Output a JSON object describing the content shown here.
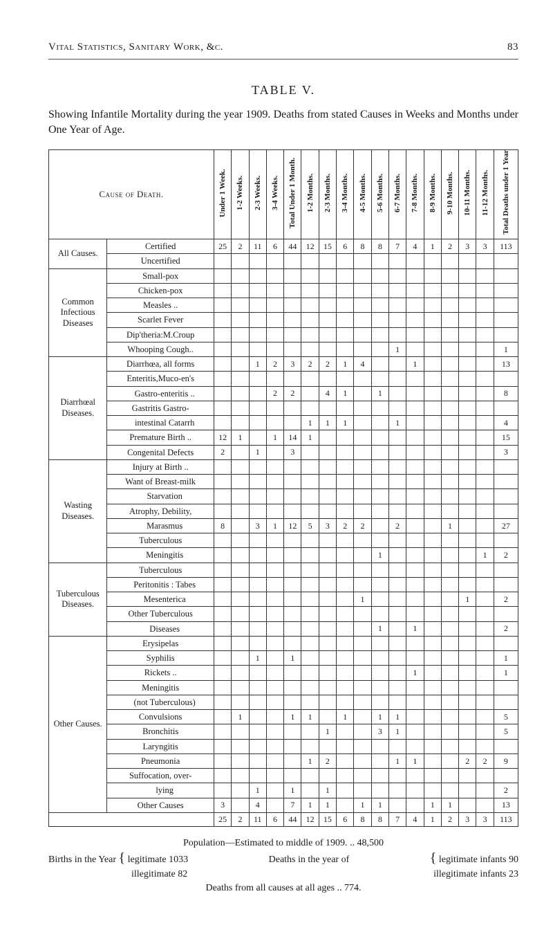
{
  "page_number": "83",
  "running_head": "Vital Statistics, Sanitary Work, &c.",
  "table_title": "TABLE  V.",
  "table_caption": "Showing Infantile Mortality during the year 1909.  Deaths from stated Causes in Weeks and Months under One Year of Age.",
  "col_cause_head": "Cause of Death.",
  "columns": [
    "Under 1 Week.",
    "1-2 Weeks.",
    "2-3 Weeks.",
    "3-4 Weeks.",
    "Total Under 1 Month.",
    "1-2 Months.",
    "2-3 Months.",
    "3-4 Months.",
    "4-5 Months.",
    "5-6 Months.",
    "6-7 Months.",
    "7-8 Months.",
    "8-9 Months.",
    "9-10 Months.",
    "10-11 Months.",
    "11-12 Months.",
    "Total Deaths under 1 Year."
  ],
  "groups": [
    {
      "label": "All Causes.",
      "rows": [
        {
          "cause": "Certified",
          "cells": [
            "25",
            "2",
            "11",
            "6",
            "44",
            "12",
            "15",
            "6",
            "8",
            "8",
            "7",
            "4",
            "1",
            "2",
            "3",
            "3",
            "113"
          ]
        },
        {
          "cause": "Uncertified",
          "cells": [
            "",
            "",
            "",
            "",
            "",
            "",
            "",
            "",
            "",
            "",
            "",
            "",
            "",
            "",
            "",
            "",
            ""
          ]
        }
      ]
    },
    {
      "label": "Common Infectious Diseases",
      "rows": [
        {
          "cause": "Small-pox",
          "cells": [
            "",
            "",
            "",
            "",
            "",
            "",
            "",
            "",
            "",
            "",
            "",
            "",
            "",
            "",
            "",
            "",
            ""
          ]
        },
        {
          "cause": "Chicken-pox",
          "cells": [
            "",
            "",
            "",
            "",
            "",
            "",
            "",
            "",
            "",
            "",
            "",
            "",
            "",
            "",
            "",
            "",
            ""
          ]
        },
        {
          "cause": "Measles ..",
          "cells": [
            "",
            "",
            "",
            "",
            "",
            "",
            "",
            "",
            "",
            "",
            "",
            "",
            "",
            "",
            "",
            "",
            ""
          ]
        },
        {
          "cause": "Scarlet Fever",
          "cells": [
            "",
            "",
            "",
            "",
            "",
            "",
            "",
            "",
            "",
            "",
            "",
            "",
            "",
            "",
            "",
            "",
            ""
          ]
        },
        {
          "cause": "Dip'theria:M.Croup",
          "cells": [
            "",
            "",
            "",
            "",
            "",
            "",
            "",
            "",
            "",
            "",
            "",
            "",
            "",
            "",
            "",
            "",
            ""
          ]
        },
        {
          "cause": "Whooping Cough..",
          "cells": [
            "",
            "",
            "",
            "",
            "",
            "",
            "",
            "",
            "",
            "",
            "1",
            "",
            "",
            "",
            "",
            "",
            "1"
          ]
        }
      ]
    },
    {
      "label": "Diarrhœal Diseases.",
      "rows": [
        {
          "cause": "Diarrhœa, all forms",
          "cells": [
            "",
            "",
            "1",
            "2",
            "3",
            "2",
            "2",
            "1",
            "4",
            "",
            "",
            "1",
            "",
            "",
            "",
            "",
            "13"
          ]
        },
        {
          "cause": "Enteritis,Muco-en's",
          "cells": [
            "",
            "",
            "",
            "",
            "",
            "",
            "",
            "",
            "",
            "",
            "",
            "",
            "",
            "",
            "",
            "",
            ""
          ]
        },
        {
          "cause": "Gastro-enteritis ..",
          "sub": true,
          "cells": [
            "",
            "",
            "",
            "2",
            "2",
            "",
            "4",
            "1",
            "",
            "1",
            "",
            "",
            "",
            "",
            "",
            "",
            "8"
          ]
        },
        {
          "cause": "Gastritis Gastro-",
          "cells": [
            "",
            "",
            "",
            "",
            "",
            "",
            "",
            "",
            "",
            "",
            "",
            "",
            "",
            "",
            "",
            "",
            ""
          ]
        },
        {
          "cause": "intestinal Catarrh",
          "sub": true,
          "cells": [
            "",
            "",
            "",
            "",
            "",
            "1",
            "1",
            "1",
            "",
            "",
            "1",
            "",
            "",
            "",
            "",
            "",
            "4"
          ]
        },
        {
          "cause": "Premature Birth ..",
          "cells": [
            "12",
            "1",
            "",
            "1",
            "14",
            "1",
            "",
            "",
            "",
            "",
            "",
            "",
            "",
            "",
            "",
            "",
            "15"
          ]
        },
        {
          "cause": "Congenital Defects",
          "cells": [
            "2",
            "",
            "1",
            "",
            "3",
            "",
            "",
            "",
            "",
            "",
            "",
            "",
            "",
            "",
            "",
            "",
            "3"
          ]
        }
      ]
    },
    {
      "label": "Wasting Diseases.",
      "rows": [
        {
          "cause": "Injury at Birth ..",
          "cells": [
            "",
            "",
            "",
            "",
            "",
            "",
            "",
            "",
            "",
            "",
            "",
            "",
            "",
            "",
            "",
            "",
            ""
          ]
        },
        {
          "cause": "Want of Breast-milk",
          "cells": [
            "",
            "",
            "",
            "",
            "",
            "",
            "",
            "",
            "",
            "",
            "",
            "",
            "",
            "",
            "",
            "",
            ""
          ]
        },
        {
          "cause": "Starvation",
          "sub": true,
          "cells": [
            "",
            "",
            "",
            "",
            "",
            "",
            "",
            "",
            "",
            "",
            "",
            "",
            "",
            "",
            "",
            "",
            ""
          ]
        },
        {
          "cause": "Atrophy, Debility,",
          "cells": [
            "",
            "",
            "",
            "",
            "",
            "",
            "",
            "",
            "",
            "",
            "",
            "",
            "",
            "",
            "",
            "",
            ""
          ]
        },
        {
          "cause": "Marasmus",
          "sub": true,
          "cells": [
            "8",
            "",
            "3",
            "1",
            "12",
            "5",
            "3",
            "2",
            "2",
            "",
            "2",
            "",
            "",
            "1",
            "",
            "",
            "27"
          ]
        },
        {
          "cause": "Tuberculous",
          "cells": [
            "",
            "",
            "",
            "",
            "",
            "",
            "",
            "",
            "",
            "",
            "",
            "",
            "",
            "",
            "",
            "",
            ""
          ]
        },
        {
          "cause": "Meningitis",
          "sub": true,
          "cells": [
            "",
            "",
            "",
            "",
            "",
            "",
            "",
            "",
            "",
            "1",
            "",
            "",
            "",
            "",
            "",
            "1",
            "2"
          ]
        }
      ]
    },
    {
      "label": "Tuberculous Diseases.",
      "rows": [
        {
          "cause": "Tuberculous",
          "cells": [
            "",
            "",
            "",
            "",
            "",
            "",
            "",
            "",
            "",
            "",
            "",
            "",
            "",
            "",
            "",
            "",
            ""
          ]
        },
        {
          "cause": "Peritonitis : Tabes",
          "sub": true,
          "cells": [
            "",
            "",
            "",
            "",
            "",
            "",
            "",
            "",
            "",
            "",
            "",
            "",
            "",
            "",
            "",
            "",
            ""
          ]
        },
        {
          "cause": "Mesenterica",
          "sub": true,
          "cells": [
            "",
            "",
            "",
            "",
            "",
            "",
            "",
            "",
            "1",
            "",
            "",
            "",
            "",
            "",
            "1",
            "",
            "2"
          ]
        },
        {
          "cause": "Other Tuberculous",
          "cells": [
            "",
            "",
            "",
            "",
            "",
            "",
            "",
            "",
            "",
            "",
            "",
            "",
            "",
            "",
            "",
            "",
            ""
          ]
        },
        {
          "cause": "Diseases",
          "sub": true,
          "cells": [
            "",
            "",
            "",
            "",
            "",
            "",
            "",
            "",
            "",
            "1",
            "",
            "1",
            "",
            "",
            "",
            "",
            "2"
          ]
        }
      ]
    },
    {
      "label": "Other Causes.",
      "rows": [
        {
          "cause": "Erysipelas",
          "cells": [
            "",
            "",
            "",
            "",
            "",
            "",
            "",
            "",
            "",
            "",
            "",
            "",
            "",
            "",
            "",
            "",
            ""
          ]
        },
        {
          "cause": "Syphilis",
          "cells": [
            "",
            "",
            "1",
            "",
            "1",
            "",
            "",
            "",
            "",
            "",
            "",
            "",
            "",
            "",
            "",
            "",
            "1"
          ]
        },
        {
          "cause": "Rickets ..",
          "cells": [
            "",
            "",
            "",
            "",
            "",
            "",
            "",
            "",
            "",
            "",
            "",
            "1",
            "",
            "",
            "",
            "",
            "1"
          ]
        },
        {
          "cause": "Meningitis",
          "cells": [
            "",
            "",
            "",
            "",
            "",
            "",
            "",
            "",
            "",
            "",
            "",
            "",
            "",
            "",
            "",
            "",
            ""
          ]
        },
        {
          "cause": "(not Tuberculous)",
          "sub": true,
          "cells": [
            "",
            "",
            "",
            "",
            "",
            "",
            "",
            "",
            "",
            "",
            "",
            "",
            "",
            "",
            "",
            "",
            ""
          ]
        },
        {
          "cause": "Convulsions",
          "cells": [
            "",
            "1",
            "",
            "",
            "1",
            "1",
            "",
            "1",
            "",
            "1",
            "1",
            "",
            "",
            "",
            "",
            "",
            "5"
          ]
        },
        {
          "cause": "Bronchitis",
          "cells": [
            "",
            "",
            "",
            "",
            "",
            "",
            "1",
            "",
            "",
            "3",
            "1",
            "",
            "",
            "",
            "",
            "",
            "5"
          ]
        },
        {
          "cause": "Laryngitis",
          "cells": [
            "",
            "",
            "",
            "",
            "",
            "",
            "",
            "",
            "",
            "",
            "",
            "",
            "",
            "",
            "",
            "",
            ""
          ]
        },
        {
          "cause": "Pneumonia",
          "cells": [
            "",
            "",
            "",
            "",
            "",
            "1",
            "2",
            "",
            "",
            "",
            "1",
            "1",
            "",
            "",
            "2",
            "2",
            "9"
          ]
        },
        {
          "cause": "Suffocation, over-",
          "cells": [
            "",
            "",
            "",
            "",
            "",
            "",
            "",
            "",
            "",
            "",
            "",
            "",
            "",
            "",
            "",
            "",
            ""
          ]
        },
        {
          "cause": "lying",
          "sub": true,
          "cells": [
            "",
            "",
            "1",
            "",
            "1",
            "",
            "1",
            "",
            "",
            "",
            "",
            "",
            "",
            "",
            "",
            "",
            "2"
          ]
        },
        {
          "cause": "Other Causes",
          "cells": [
            "3",
            "",
            "4",
            "",
            "7",
            "1",
            "1",
            "",
            "1",
            "1",
            "",
            "",
            "1",
            "1",
            "",
            "",
            "13"
          ]
        }
      ]
    }
  ],
  "totals_row": [
    "25",
    "2",
    "11",
    "6",
    "44",
    "12",
    "15",
    "6",
    "8",
    "8",
    "7",
    "4",
    "1",
    "2",
    "3",
    "3",
    "113"
  ],
  "footnotes": {
    "pop_line": "Population—Estimated to middle of 1909.  ..  48,500",
    "left_label": "Births in the Year",
    "left_items": [
      "legitimate 1033",
      "illegitimate  82"
    ],
    "mid_label": "Deaths in the year of",
    "right_items": [
      "legitimate infants  90",
      "illegitimate infants 23"
    ],
    "deaths_line": "Deaths from all causes at all ages  ..  774."
  },
  "colors": {
    "text": "#1a1a1a",
    "rule": "#555555",
    "border": "#333333",
    "background": "#ffffff"
  },
  "col_widths": {
    "group_label_pct": 12,
    "cause_pct": 22,
    "month_cols_pct": 3.6,
    "total_col_pct": 5
  }
}
